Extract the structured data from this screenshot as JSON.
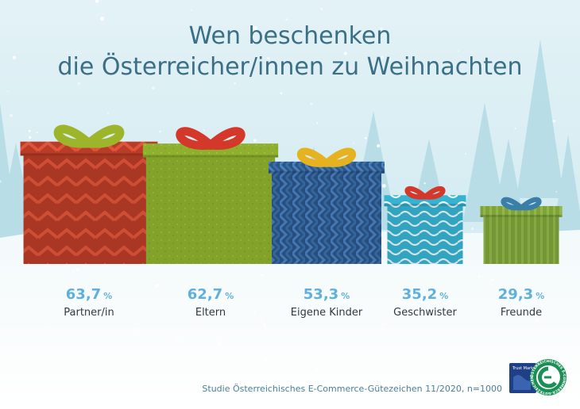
{
  "title_lines": [
    "Wen beschenken",
    "die Österreicher/innen zu Weihnachten"
  ],
  "source": "Studie Österreichisches E-Commerce-Gütezeichen 11/2020, n=1000",
  "logo": {
    "badge_text": "Trust Mark",
    "ring_text": "ÖSTERREICHISCHES E-COMMERCE-GÜTEZEICHEN",
    "icon": "e-commerce-guetezeichen-seal"
  },
  "chart_data": {
    "type": "bar",
    "categories": [
      "Partner/in",
      "Eltern",
      "Eigene Kinder",
      "Geschwister",
      "Freunde"
    ],
    "series": [
      {
        "values": [
          63.7,
          62.7,
          53.3,
          35.2,
          29.3
        ]
      }
    ],
    "value_labels": [
      "63,7",
      "62,7",
      "53,3",
      "35,2",
      "29,3"
    ],
    "unit": "%",
    "title": "Wen beschenken die Österreicher/innen zu Weihnachten",
    "xlabel": "",
    "ylabel": "",
    "ylim": [
      0,
      70
    ],
    "grid": false,
    "bar_style": "gift-boxes",
    "colors": {
      "box": [
        "#c0432c",
        "#8fb02e",
        "#2c5d92",
        "#36b3d1",
        "#7fa33a"
      ],
      "ribbon": [
        "#9cb52a",
        "#d4382a",
        "#e6b21f",
        "#d4382a",
        "#3b7fa8"
      ]
    }
  }
}
